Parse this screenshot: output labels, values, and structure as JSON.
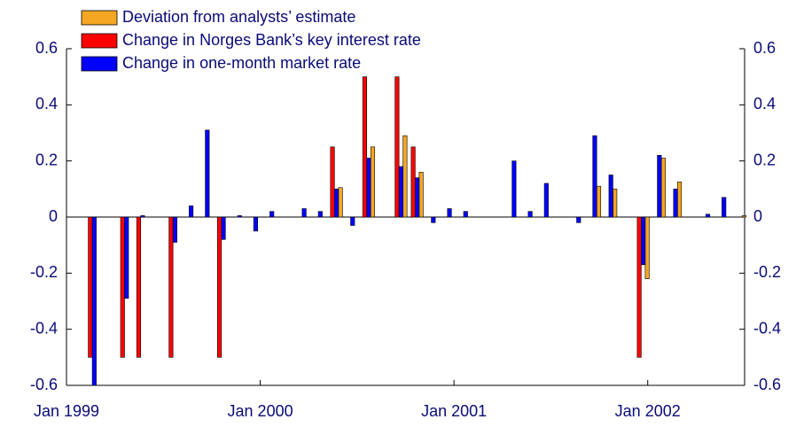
{
  "chart_data": {
    "type": "bar",
    "categories": [
      "Jan 1999",
      null,
      null,
      null,
      null,
      null,
      null,
      null,
      null,
      null,
      null,
      null,
      "Jan 2000",
      null,
      null,
      null,
      null,
      null,
      null,
      null,
      null,
      null,
      null,
      null,
      "Jan 2001",
      null,
      null,
      null,
      null,
      null,
      null,
      null,
      null,
      null,
      null,
      null,
      "Jan 2002",
      null,
      null,
      null,
      null,
      null
    ],
    "series": [
      {
        "name": "Deviation from analysts’ estimate",
        "color": "#f5a623",
        "values": [
          null,
          null,
          null,
          null,
          null,
          null,
          null,
          null,
          null,
          null,
          null,
          null,
          null,
          null,
          null,
          null,
          0.105,
          null,
          0.25,
          null,
          0.29,
          0.16,
          null,
          null,
          null,
          null,
          null,
          null,
          null,
          null,
          null,
          null,
          0.11,
          0.1,
          null,
          -0.22,
          0.21,
          0.125,
          null,
          null,
          null,
          0.005
        ]
      },
      {
        "name": "Change in Norges Bank’s key interest rate",
        "color": "#ff0000",
        "values": [
          null,
          -0.5,
          null,
          -0.5,
          -0.5,
          null,
          -0.5,
          null,
          null,
          -0.5,
          null,
          null,
          null,
          null,
          null,
          null,
          0.25,
          null,
          0.5,
          null,
          0.5,
          0.25,
          null,
          null,
          null,
          null,
          null,
          null,
          null,
          null,
          null,
          null,
          null,
          null,
          null,
          -0.5,
          null,
          null,
          null,
          null,
          null,
          null
        ]
      },
      {
        "name": "Change in one-month market rate",
        "color": "#0000ff",
        "values": [
          null,
          -0.6,
          null,
          -0.29,
          0.005,
          null,
          -0.09,
          0.04,
          0.31,
          -0.08,
          0.005,
          -0.05,
          0.02,
          null,
          0.03,
          0.02,
          0.1,
          -0.03,
          0.21,
          null,
          0.18,
          0.14,
          -0.02,
          0.03,
          0.02,
          null,
          null,
          0.2,
          0.02,
          0.12,
          null,
          -0.02,
          0.29,
          0.15,
          null,
          -0.17,
          0.22,
          0.1,
          null,
          0.01,
          0.07,
          null
        ]
      }
    ],
    "ylim": [
      -0.6,
      0.6
    ],
    "yticks": [
      -0.6,
      -0.4,
      -0.2,
      0,
      0.2,
      0.4,
      0.6
    ],
    "y2lim": [
      -0.6,
      0.6
    ],
    "y2ticks": [
      -0.6,
      -0.4,
      -0.2,
      0,
      0.2,
      0.4,
      0.6
    ],
    "legend": "upper left"
  }
}
